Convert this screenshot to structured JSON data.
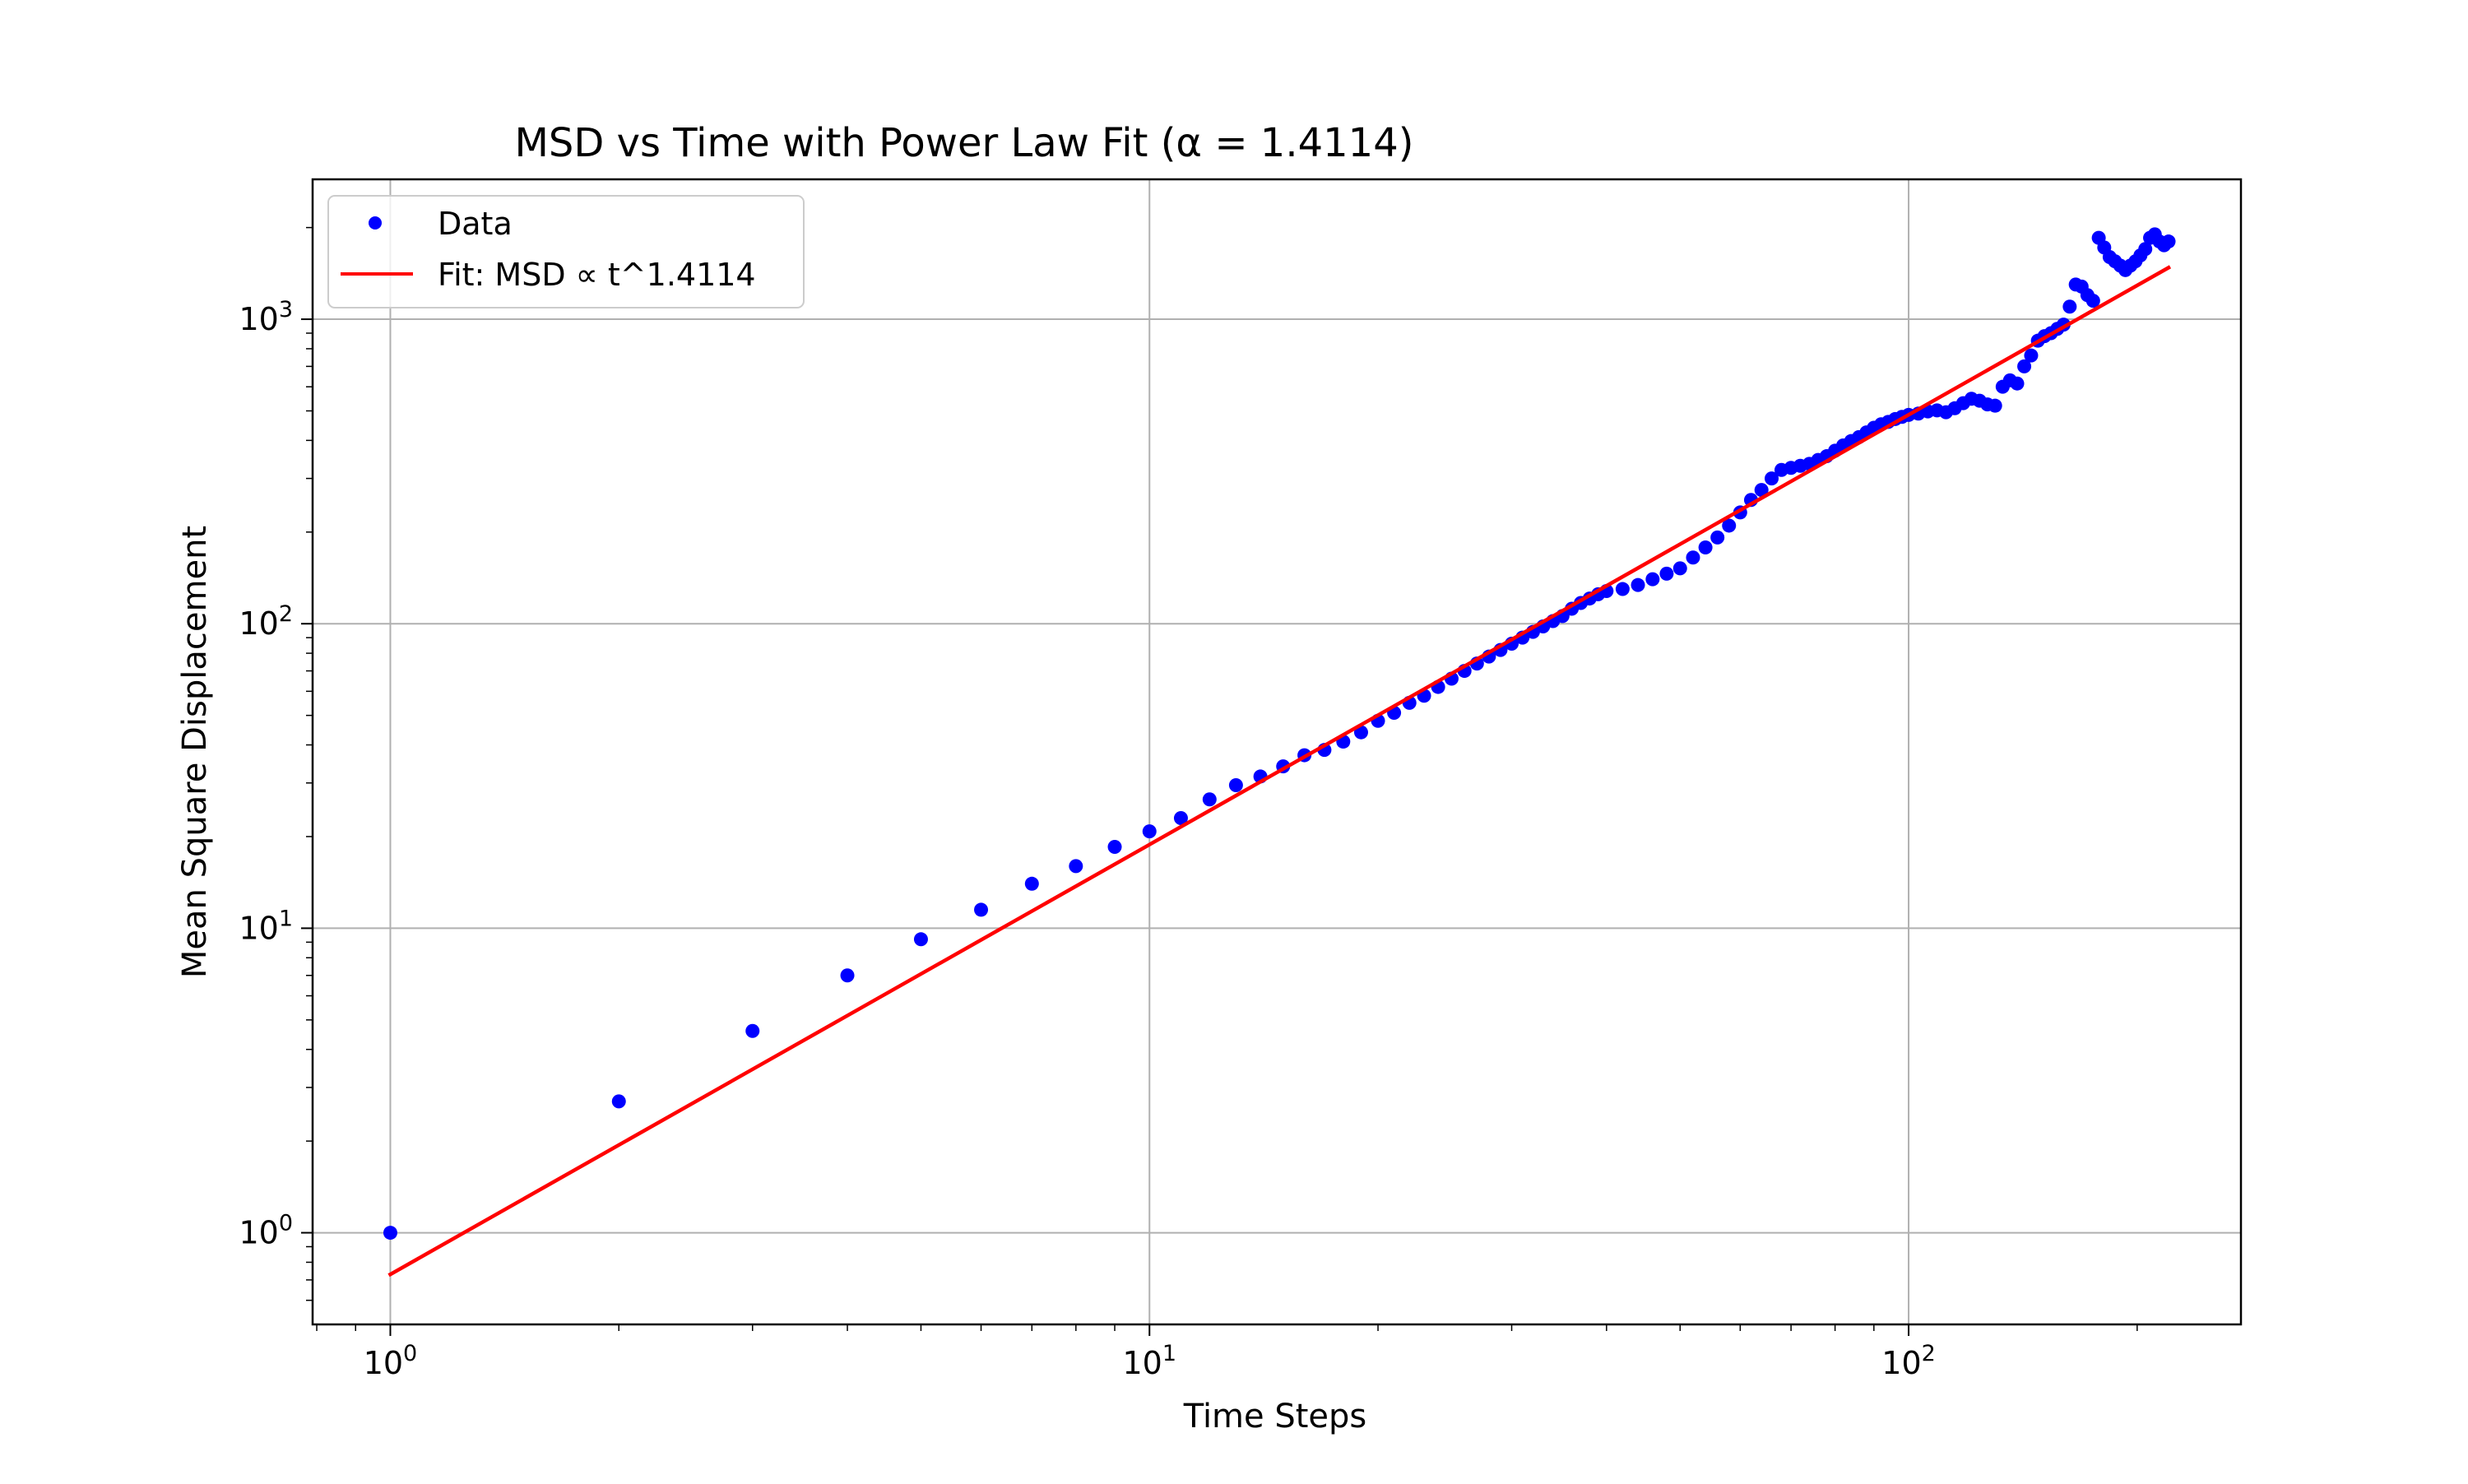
{
  "chart_data": {
    "type": "scatter",
    "title": "MSD vs Time with Power Law Fit (α = 1.4114)",
    "xlabel": "Time Steps",
    "ylabel": "Mean Square Displacement",
    "xscale": "log",
    "yscale": "log",
    "xlim": [
      0.79,
      274
    ],
    "ylim": [
      0.5,
      2880
    ],
    "grid": true,
    "legend_position": "upper-left",
    "x_ticks": [
      {
        "value": 1,
        "base": "10",
        "exp": "0"
      },
      {
        "value": 10,
        "base": "10",
        "exp": "1"
      },
      {
        "value": 100,
        "base": "10",
        "exp": "2"
      }
    ],
    "y_ticks": [
      {
        "value": 1,
        "base": "10",
        "exp": "0"
      },
      {
        "value": 10,
        "base": "10",
        "exp": "1"
      },
      {
        "value": 100,
        "base": "10",
        "exp": "2"
      },
      {
        "value": 1000,
        "base": "10",
        "exp": "3"
      }
    ],
    "series": [
      {
        "name": "Data",
        "style": "points",
        "color": "#0000ff",
        "x": [
          1,
          2,
          3,
          4,
          5,
          6,
          7,
          8,
          9,
          10,
          11,
          12,
          13,
          14,
          15,
          16,
          17,
          18,
          19,
          20,
          21,
          22,
          23,
          24,
          25,
          26,
          27,
          28,
          29,
          30,
          31,
          32,
          33,
          34,
          35,
          36,
          37,
          38,
          39,
          40,
          42,
          44,
          46,
          48,
          50,
          52,
          54,
          56,
          58,
          60,
          62,
          64,
          66,
          68,
          70,
          72,
          74,
          76,
          78,
          80,
          82,
          84,
          86,
          88,
          90,
          92,
          94,
          96,
          98,
          100,
          103,
          106,
          109,
          112,
          115,
          118,
          121,
          124,
          127,
          130,
          133,
          136,
          139,
          142,
          145,
          148,
          151,
          154,
          157,
          160,
          163,
          166,
          169,
          172,
          175,
          178,
          181,
          184,
          187,
          190,
          193,
          196,
          199,
          202,
          205,
          208,
          211,
          214,
          217,
          220
        ],
        "y": [
          1.0,
          2.7,
          4.6,
          7.0,
          9.2,
          11.5,
          14.0,
          16.0,
          18.5,
          20.8,
          23.0,
          26.5,
          29.5,
          31.5,
          34.0,
          37.0,
          38.5,
          41.0,
          44.0,
          48.0,
          51.0,
          55.0,
          58.0,
          62.0,
          66.0,
          70.0,
          74.0,
          78.0,
          82.0,
          86.0,
          90.0,
          94.0,
          98.0,
          102.0,
          106.0,
          112.0,
          117.0,
          121.0,
          125.0,
          128.0,
          130.0,
          134.0,
          140.0,
          146.0,
          152.0,
          165.0,
          178.0,
          192.0,
          210.0,
          232.0,
          255.0,
          275.0,
          300.0,
          320.0,
          325.0,
          330.0,
          335.0,
          345.0,
          355.0,
          370.0,
          385.0,
          398.0,
          410.0,
          425.0,
          440.0,
          452.0,
          460.0,
          470.0,
          478.0,
          485.0,
          490.0,
          498.0,
          502.0,
          495.0,
          510.0,
          530.0,
          548.0,
          540.0,
          525.0,
          520.0,
          600.0,
          630.0,
          615.0,
          700.0,
          760.0,
          850.0,
          880.0,
          900.0,
          930.0,
          960.0,
          1100.0,
          1300.0,
          1280.0,
          1200.0,
          1150.0,
          1850.0,
          1720.0,
          1600.0,
          1550.0,
          1500.0,
          1450.0,
          1500.0,
          1550.0,
          1620.0,
          1700.0,
          1850.0,
          1900.0,
          1800.0,
          1750.0,
          1800.0
        ]
      },
      {
        "name": "Fit: MSD ∝ t^1.4114",
        "style": "line",
        "color": "#ff0000",
        "amplitude": 0.73,
        "exponent": 1.4114,
        "x_range": [
          1,
          220
        ]
      }
    ]
  }
}
